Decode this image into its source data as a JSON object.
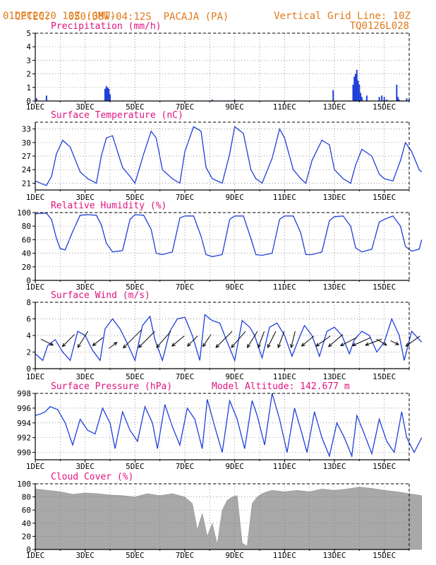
{
  "header": {
    "source": "CPTEC:",
    "location": "050:38W-04:12S",
    "place": "PACAJA (PA)",
    "date": "01DEC2020 10Z (GMT)",
    "grid_note": "Vertical Grid Line: 10Z",
    "code": "TQ0126L028"
  },
  "colors": {
    "title": "#e0137f",
    "header": "#e07a1a",
    "series": "#1f3fdb",
    "cloud": "#a8a8a8",
    "arrow": "#000000"
  },
  "x_tick_labels": [
    "1DEC",
    "3DEC",
    "5DEC",
    "7DEC",
    "9DEC",
    "11DEC",
    "13DEC",
    "15DEC"
  ],
  "chart_data": [
    {
      "type": "bar",
      "title": "Precipitation (mm/h)",
      "xlim": [
        0,
        15
      ],
      "ylim": [
        0,
        5
      ],
      "yticks": [
        0,
        1,
        2,
        3,
        4,
        5
      ],
      "x": [
        0.05,
        0.45,
        2.8,
        2.85,
        2.9,
        2.95,
        3.0,
        7.1,
        8.0,
        11.95,
        12.75,
        12.8,
        12.85,
        12.9,
        12.95,
        13.0,
        13.05,
        13.1,
        13.3,
        13.8,
        13.9,
        14.0,
        14.1,
        14.5,
        14.55,
        14.6,
        14.9,
        15.0
      ],
      "values": [
        0.2,
        0.4,
        0.9,
        1.1,
        1.0,
        0.9,
        0.5,
        0.1,
        0.1,
        0.8,
        1.2,
        1.8,
        2.0,
        2.3,
        1.5,
        1.2,
        0.6,
        0.3,
        0.4,
        0.3,
        0.4,
        0.3,
        0.1,
        1.2,
        0.3,
        0.1,
        0.2,
        0.1
      ]
    },
    {
      "type": "line",
      "title": "Surface Temperature (nC)",
      "xlim": [
        0,
        15
      ],
      "ylim": [
        19.5,
        34.5
      ],
      "yticks": [
        21,
        24,
        27,
        30,
        33
      ],
      "x": [
        0,
        0.3,
        0.45,
        0.65,
        0.85,
        1.1,
        1.4,
        1.8,
        2.1,
        2.45,
        2.65,
        2.85,
        3.1,
        3.5,
        3.8,
        4.0,
        4.35,
        4.65,
        4.85,
        5.1,
        5.5,
        5.8,
        6.0,
        6.35,
        6.65,
        6.85,
        7.1,
        7.5,
        7.8,
        8.0,
        8.35,
        8.65,
        8.85,
        9.1,
        9.5,
        9.8,
        10.0,
        10.35,
        10.65,
        10.85,
        11.1,
        11.5,
        11.8,
        12.0,
        12.35,
        12.65,
        12.85,
        13.1,
        13.5,
        13.8,
        14.0,
        14.35,
        14.65,
        14.85,
        15.1,
        15.4,
        15.5
      ],
      "values": [
        21.5,
        20.8,
        20.5,
        22.5,
        27.5,
        30.5,
        29.0,
        23.5,
        22.0,
        21.0,
        27.0,
        31.0,
        31.5,
        24.5,
        22.5,
        21.0,
        27.5,
        32.5,
        31.0,
        24.0,
        22.0,
        21.0,
        28.0,
        33.5,
        32.5,
        24.5,
        22.0,
        21.0,
        27.5,
        33.5,
        32.0,
        24.0,
        22.0,
        21.0,
        26.5,
        33.0,
        31.0,
        24.0,
        22.0,
        21.0,
        26.0,
        30.5,
        29.5,
        24.0,
        22.0,
        21.0,
        25.0,
        28.5,
        27.0,
        23.0,
        22.0,
        21.5,
        26.0,
        30.0,
        28.0,
        24.0,
        23.5
      ]
    },
    {
      "type": "line",
      "title": "Relative Humidity (%)",
      "xlim": [
        0,
        15
      ],
      "ylim": [
        0,
        100
      ],
      "yticks": [
        0,
        20,
        40,
        60,
        80,
        100
      ],
      "x": [
        0,
        0.2,
        0.45,
        0.65,
        0.85,
        1.0,
        1.2,
        1.5,
        1.8,
        2.1,
        2.45,
        2.65,
        2.85,
        3.1,
        3.5,
        3.8,
        4.0,
        4.35,
        4.65,
        4.85,
        5.1,
        5.5,
        5.8,
        6.0,
        6.35,
        6.65,
        6.85,
        7.1,
        7.5,
        7.8,
        8.0,
        8.35,
        8.65,
        8.85,
        9.1,
        9.5,
        9.8,
        10.0,
        10.35,
        10.65,
        10.85,
        11.1,
        11.5,
        11.8,
        12.0,
        12.35,
        12.65,
        12.85,
        13.1,
        13.5,
        13.8,
        14.0,
        14.35,
        14.65,
        14.85,
        15.1,
        15.4,
        15.5
      ],
      "values": [
        98,
        99,
        99,
        90,
        62,
        47,
        45,
        72,
        96,
        97,
        96,
        82,
        55,
        42,
        44,
        90,
        97,
        96,
        75,
        40,
        38,
        42,
        92,
        95,
        95,
        65,
        38,
        35,
        38,
        90,
        95,
        95,
        62,
        38,
        37,
        40,
        90,
        95,
        95,
        70,
        38,
        38,
        42,
        88,
        94,
        95,
        80,
        48,
        42,
        46,
        86,
        90,
        95,
        80,
        50,
        43,
        46,
        60
      ]
    },
    {
      "type": "line",
      "title": "Surface Wind (m/s)",
      "xlim": [
        0,
        15
      ],
      "ylim": [
        0,
        8
      ],
      "yticks": [
        0,
        2,
        4,
        6,
        8
      ],
      "x": [
        0,
        0.3,
        0.5,
        0.8,
        1.1,
        1.4,
        1.7,
        2.0,
        2.3,
        2.6,
        2.8,
        3.1,
        3.4,
        3.7,
        4.0,
        4.3,
        4.6,
        4.8,
        5.1,
        5.4,
        5.7,
        6.0,
        6.3,
        6.6,
        6.8,
        7.1,
        7.4,
        7.7,
        8.0,
        8.3,
        8.6,
        8.8,
        9.1,
        9.4,
        9.7,
        10.0,
        10.3,
        10.6,
        10.8,
        11.1,
        11.4,
        11.7,
        12.0,
        12.3,
        12.6,
        12.8,
        13.1,
        13.4,
        13.7,
        14.0,
        14.3,
        14.6,
        14.8,
        15.1,
        15.5
      ],
      "values": [
        1.8,
        1.0,
        2.8,
        3.5,
        2.0,
        1.0,
        4.5,
        4.0,
        2.2,
        1.0,
        4.8,
        6.0,
        4.8,
        3.0,
        1.0,
        5.2,
        6.3,
        3.5,
        1.0,
        4.5,
        6.0,
        6.2,
        4.0,
        1.0,
        6.5,
        5.8,
        5.5,
        3.2,
        1.0,
        5.8,
        5.0,
        4.0,
        1.3,
        5.0,
        5.5,
        4.0,
        1.5,
        3.8,
        5.2,
        4.0,
        1.5,
        4.5,
        5.0,
        4.0,
        1.8,
        3.5,
        4.5,
        4.0,
        2.0,
        3.2,
        6.0,
        4.0,
        1.0,
        4.5,
        3.2
      ],
      "wind_arrows": [
        {
          "x": 0.6,
          "u": -0.6,
          "v": 0.3
        },
        {
          "x": 1.2,
          "u": 0.6,
          "v": 0.6
        },
        {
          "x": 1.8,
          "u": 0.5,
          "v": 0.8
        },
        {
          "x": 2.4,
          "u": 0.5,
          "v": 0.4
        },
        {
          "x": 3.2,
          "u": -0.4,
          "v": -0.3
        },
        {
          "x": 3.7,
          "u": 0.9,
          "v": 0.9
        },
        {
          "x": 4.3,
          "u": 0.8,
          "v": 0.8
        },
        {
          "x": 5.0,
          "u": 0.7,
          "v": 0.8
        },
        {
          "x": 5.6,
          "u": 0.6,
          "v": 0.5
        },
        {
          "x": 6.2,
          "u": 0.5,
          "v": 0.5
        },
        {
          "x": 6.8,
          "u": 0.4,
          "v": 0.6
        },
        {
          "x": 7.4,
          "u": 0.8,
          "v": 0.8
        },
        {
          "x": 8.0,
          "u": 0.7,
          "v": 0.8
        },
        {
          "x": 8.6,
          "u": 0.5,
          "v": 0.8
        },
        {
          "x": 9.0,
          "u": 0.3,
          "v": 0.8
        },
        {
          "x": 9.4,
          "u": 0.4,
          "v": 0.8
        },
        {
          "x": 9.8,
          "u": 0.3,
          "v": 0.8
        },
        {
          "x": 10.3,
          "u": 0.2,
          "v": 0.8
        },
        {
          "x": 10.8,
          "u": 0.6,
          "v": 0.5
        },
        {
          "x": 11.4,
          "u": 0.7,
          "v": 0.5
        },
        {
          "x": 11.9,
          "u": 0.7,
          "v": 0.6
        },
        {
          "x": 12.4,
          "u": 0.8,
          "v": 0.4
        },
        {
          "x": 12.9,
          "u": 0.9,
          "v": 0.4
        },
        {
          "x": 13.4,
          "u": 0.8,
          "v": 0.3
        },
        {
          "x": 14.0,
          "u": -0.5,
          "v": 0.3
        },
        {
          "x": 14.5,
          "u": -0.4,
          "v": 0.2
        },
        {
          "x": 15.0,
          "u": 0.7,
          "v": 0.5
        }
      ]
    },
    {
      "type": "line",
      "title": "Surface Pressure (hPa)",
      "annotation": "Model Altitude: 142.677 m",
      "xlim": [
        0,
        15
      ],
      "ylim": [
        989,
        998
      ],
      "yticks": [
        990,
        992,
        994,
        996,
        998
      ],
      "x": [
        0,
        0.2,
        0.4,
        0.6,
        0.9,
        1.2,
        1.5,
        1.8,
        2.1,
        2.4,
        2.7,
        3.0,
        3.2,
        3.5,
        3.8,
        4.1,
        4.4,
        4.7,
        4.9,
        5.2,
        5.5,
        5.8,
        6.1,
        6.4,
        6.7,
        6.9,
        7.2,
        7.5,
        7.8,
        8.1,
        8.4,
        8.7,
        8.9,
        9.2,
        9.5,
        9.8,
        10.1,
        10.4,
        10.7,
        10.9,
        11.2,
        11.5,
        11.8,
        12.1,
        12.4,
        12.7,
        12.9,
        13.2,
        13.5,
        13.8,
        14.1,
        14.4,
        14.7,
        14.9,
        15.2,
        15.5
      ],
      "values": [
        995.0,
        995.2,
        995.5,
        996.2,
        995.8,
        994.0,
        991.0,
        994.5,
        993.0,
        992.5,
        996.0,
        994.0,
        990.5,
        995.5,
        993.0,
        991.5,
        996.2,
        994.0,
        990.5,
        996.5,
        993.5,
        991.0,
        996.0,
        994.5,
        990.5,
        997.2,
        993.5,
        990.0,
        997.0,
        994.5,
        990.5,
        997.0,
        995.0,
        991.0,
        998.0,
        994.5,
        990.0,
        996.0,
        992.5,
        990.0,
        995.5,
        992.0,
        989.5,
        994.0,
        992.0,
        989.5,
        995.0,
        992.5,
        989.8,
        994.5,
        991.5,
        990.0,
        995.5,
        992.0,
        990.0,
        992.0
      ]
    },
    {
      "type": "area",
      "title": "Cloud Cover (%)",
      "xlim": [
        0,
        15
      ],
      "ylim": [
        0,
        100
      ],
      "yticks": [
        0,
        20,
        40,
        60,
        80,
        100
      ],
      "x": [
        0,
        0.5,
        1.0,
        1.5,
        2.0,
        2.5,
        3.0,
        3.5,
        4.0,
        4.5,
        5.0,
        5.5,
        6.0,
        6.3,
        6.5,
        6.7,
        6.9,
        7.1,
        7.3,
        7.5,
        7.7,
        7.9,
        8.1,
        8.3,
        8.5,
        8.7,
        8.9,
        9.1,
        9.3,
        9.5,
        10.0,
        10.5,
        11.0,
        11.5,
        12.0,
        12.5,
        13.0,
        13.5,
        14.0,
        14.5,
        15.0,
        15.5
      ],
      "values": [
        92,
        90,
        88,
        84,
        86,
        85,
        83,
        82,
        80,
        85,
        82,
        85,
        80,
        70,
        30,
        55,
        20,
        40,
        8,
        60,
        75,
        80,
        82,
        10,
        5,
        70,
        80,
        85,
        88,
        90,
        88,
        90,
        88,
        92,
        90,
        92,
        95,
        93,
        90,
        88,
        85,
        82
      ]
    }
  ]
}
